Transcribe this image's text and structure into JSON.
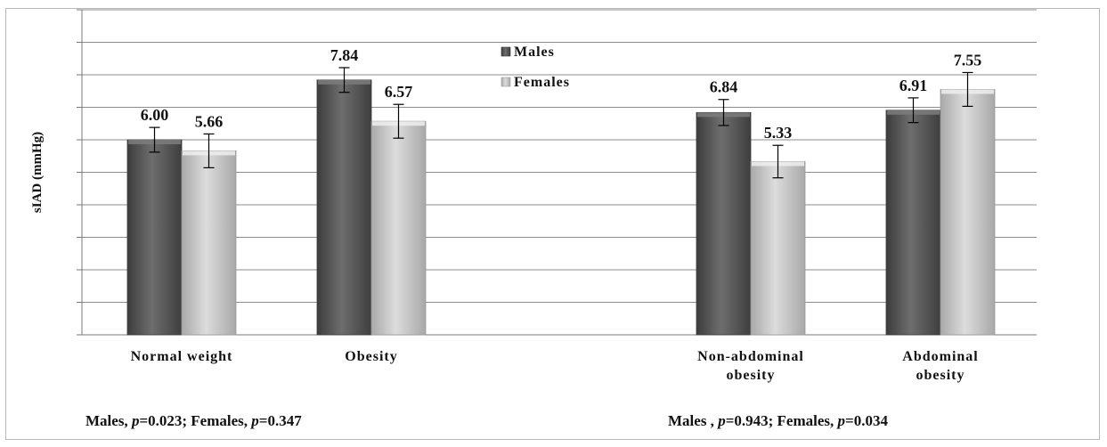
{
  "chart_data": {
    "type": "bar",
    "ylabel": "sIAD (mmHg)",
    "ylim": [
      0,
      10
    ],
    "ytick_step": 1,
    "grid": true,
    "y_tick_labels_shown": false,
    "legend_placement": "top-center",
    "categories": [
      "Normal weight",
      "Obesity",
      "Non-abdominal obesity",
      "Abdominal obesity"
    ],
    "category_label_lines": [
      [
        "Normal weight"
      ],
      [
        "Obesity"
      ],
      [
        "Non-abdominal",
        "obesity"
      ],
      [
        "Abdominal",
        "obesity"
      ]
    ],
    "series": [
      {
        "name": "Males",
        "color": "#5a5a5a",
        "values": [
          6.0,
          7.84,
          6.84,
          6.91
        ],
        "value_labels": [
          "6.00",
          "7.84",
          "6.84",
          "6.91"
        ],
        "error": [
          0.38,
          0.38,
          0.4,
          0.38
        ]
      },
      {
        "name": "Females",
        "color": "#c4c4c4",
        "values": [
          5.66,
          6.57,
          5.33,
          7.55
        ],
        "value_labels": [
          "5.66",
          "6.57",
          "5.33",
          "7.55"
        ],
        "error": [
          0.52,
          0.52,
          0.5,
          0.52
        ]
      }
    ],
    "annotations": [
      {
        "group": "left",
        "males_label": "Males, ",
        "males_p": "0.023",
        "females_label": "; Females, ",
        "females_p": "0.347"
      },
      {
        "group": "right",
        "males_label": "Males , ",
        "males_p": "0.943",
        "females_label": "; Females, ",
        "females_p": "0.034"
      }
    ],
    "p_symbol": "p"
  }
}
